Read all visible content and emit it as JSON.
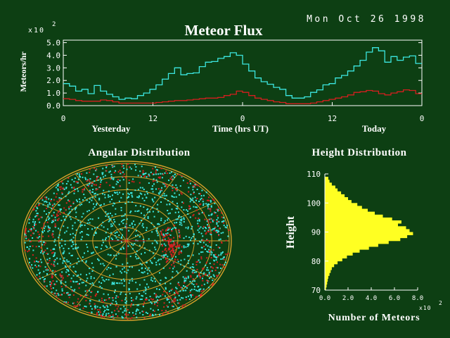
{
  "date_text": "Mon Oct 26 1998",
  "colors": {
    "background": "#0d3f13",
    "text": "#ffffff",
    "sporadic": "#3ce6e0",
    "shower": "#d41f1f",
    "histogram": "#ffff22",
    "sky_grid": "#d9a12a"
  },
  "chart_data": [
    {
      "type": "line",
      "title": "Meteor Flux",
      "xlabel": "Time (hrs UT)",
      "ylabel": "Meteors/hr",
      "y_multiplier": "x10",
      "y_multiplier_exp": "2",
      "ylim": [
        0,
        5.2
      ],
      "y_ticks": [
        "0.0",
        "1.0",
        "2.0",
        "3.0",
        "4.0",
        "5.0"
      ],
      "x_ticks": [
        "0",
        "12",
        "0",
        "12",
        "0"
      ],
      "day_labels": [
        "Yesterday",
        "Today"
      ],
      "step": true,
      "series": [
        {
          "values": [
            1.75,
            1.55,
            1.15,
            1.3,
            0.95,
            1.6,
            1.15,
            0.9,
            0.7,
            0.5,
            0.6,
            0.55,
            0.8,
            1.0,
            1.3,
            1.65,
            2.1,
            2.55,
            3.0,
            2.45,
            2.55,
            2.6,
            3.1,
            3.45,
            3.5,
            3.75,
            3.9,
            4.2,
            4.0,
            3.3,
            2.75,
            2.2,
            1.9,
            1.7,
            1.45,
            1.3,
            0.8,
            0.6,
            0.6,
            0.7,
            1.05,
            1.25,
            1.65,
            1.75,
            2.2,
            2.4,
            2.75,
            3.15,
            3.6,
            4.25,
            4.6,
            4.35,
            3.45,
            3.9,
            3.6,
            3.85,
            3.95,
            3.35
          ]
        },
        {
          "values": [
            0.55,
            0.5,
            0.4,
            0.35,
            0.35,
            0.35,
            0.45,
            0.4,
            0.3,
            0.2,
            0.2,
            0.2,
            0.2,
            0.2,
            0.2,
            0.25,
            0.3,
            0.35,
            0.4,
            0.4,
            0.45,
            0.5,
            0.55,
            0.6,
            0.6,
            0.65,
            0.8,
            0.9,
            1.15,
            1.05,
            0.8,
            0.6,
            0.5,
            0.4,
            0.3,
            0.25,
            0.15,
            0.15,
            0.15,
            0.15,
            0.2,
            0.3,
            0.4,
            0.5,
            0.6,
            0.7,
            0.85,
            1.05,
            1.1,
            1.2,
            1.15,
            0.95,
            0.85,
            1.0,
            1.1,
            1.25,
            1.2,
            0.95
          ]
        }
      ]
    },
    {
      "type": "scatter",
      "title": "Angular Distribution"
    },
    {
      "type": "bar",
      "orientation": "horizontal",
      "title": "Height Distribution",
      "xlabel": "Number of Meteors",
      "ylabel": "Height",
      "x_multiplier": "x10",
      "x_multiplier_exp": "2",
      "xlim": [
        0,
        8
      ],
      "x_ticks": [
        "0.0",
        "2.0",
        "4.0",
        "6.0",
        "8.0"
      ],
      "y_ticks": [
        "70",
        "80",
        "90",
        "100",
        "110"
      ],
      "ylim": [
        70,
        110
      ],
      "bins": [
        {
          "height": 108.5,
          "value": 0.3
        },
        {
          "height": 107.5,
          "value": 0.4
        },
        {
          "height": 106.5,
          "value": 0.6
        },
        {
          "height": 105.5,
          "value": 0.9
        },
        {
          "height": 104.5,
          "value": 1.1
        },
        {
          "height": 103.5,
          "value": 1.4
        },
        {
          "height": 102.5,
          "value": 1.7
        },
        {
          "height": 101.5,
          "value": 2.0
        },
        {
          "height": 100.5,
          "value": 2.3
        },
        {
          "height": 99.5,
          "value": 2.8
        },
        {
          "height": 98.5,
          "value": 3.2
        },
        {
          "height": 97.5,
          "value": 3.7
        },
        {
          "height": 96.5,
          "value": 4.3
        },
        {
          "height": 95.5,
          "value": 5.0
        },
        {
          "height": 94.5,
          "value": 5.8
        },
        {
          "height": 93.5,
          "value": 6.6
        },
        {
          "height": 92.5,
          "value": 6.3
        },
        {
          "height": 91.5,
          "value": 7.0
        },
        {
          "height": 90.5,
          "value": 7.3
        },
        {
          "height": 89.5,
          "value": 7.6
        },
        {
          "height": 88.5,
          "value": 7.1
        },
        {
          "height": 87.5,
          "value": 6.5
        },
        {
          "height": 86.5,
          "value": 5.5
        },
        {
          "height": 85.5,
          "value": 4.6
        },
        {
          "height": 84.5,
          "value": 3.8
        },
        {
          "height": 83.5,
          "value": 3.0
        },
        {
          "height": 82.5,
          "value": 2.4
        },
        {
          "height": 81.5,
          "value": 1.9
        },
        {
          "height": 80.5,
          "value": 1.5
        },
        {
          "height": 79.5,
          "value": 1.1
        },
        {
          "height": 78.5,
          "value": 0.8
        },
        {
          "height": 77.5,
          "value": 0.6
        },
        {
          "height": 76.5,
          "value": 0.5
        },
        {
          "height": 75.5,
          "value": 0.4
        },
        {
          "height": 74.5,
          "value": 0.3
        },
        {
          "height": 73.5,
          "value": 0.25
        },
        {
          "height": 72.5,
          "value": 0.2
        },
        {
          "height": 71.5,
          "value": 0.15
        },
        {
          "height": 70.5,
          "value": 0.1
        }
      ]
    }
  ]
}
